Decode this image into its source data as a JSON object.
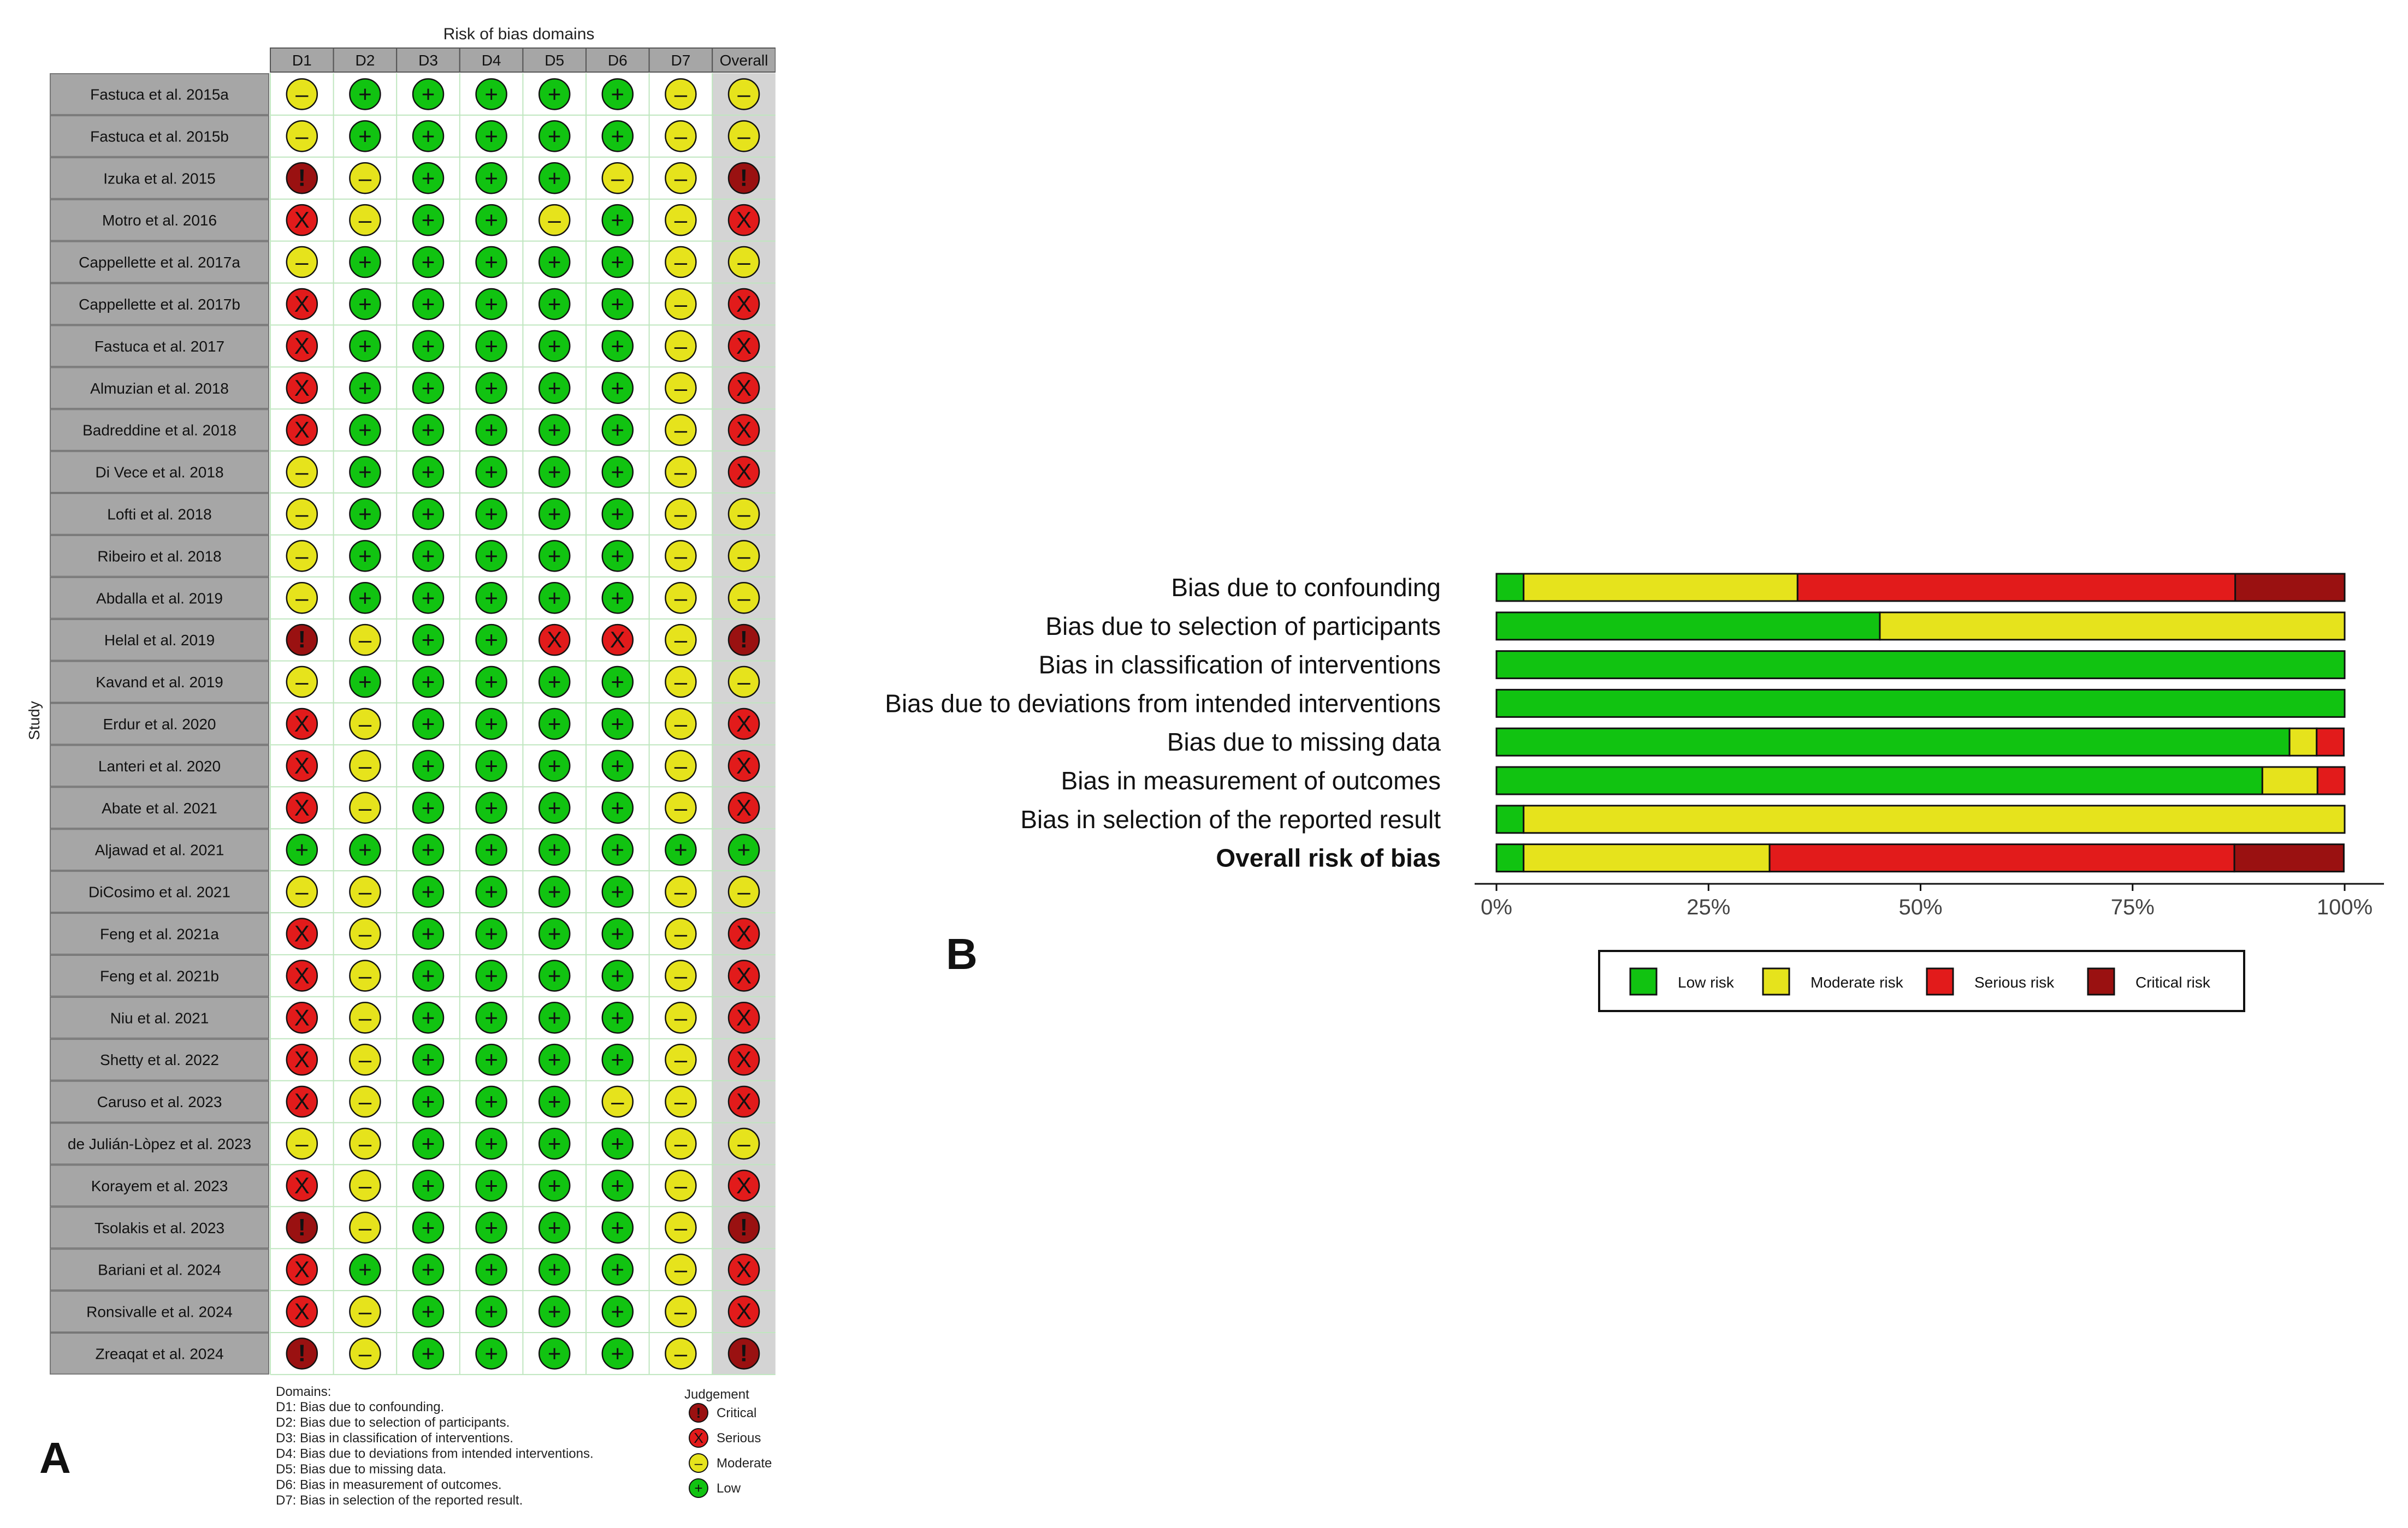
{
  "panel_a": {
    "letter": "A",
    "domains_title": "Risk of bias domains",
    "y_axis_label": "Study",
    "columns": [
      "D1",
      "D2",
      "D3",
      "D4",
      "D5",
      "D6",
      "D7",
      "Overall"
    ],
    "studies": [
      {
        "name": "Fastuca et al. 2015a",
        "j": [
          "M",
          "L",
          "L",
          "L",
          "L",
          "L",
          "M",
          "M"
        ]
      },
      {
        "name": "Fastuca et al. 2015b",
        "j": [
          "M",
          "L",
          "L",
          "L",
          "L",
          "L",
          "M",
          "M"
        ]
      },
      {
        "name": "Izuka et al. 2015",
        "j": [
          "C",
          "M",
          "L",
          "L",
          "L",
          "M",
          "M",
          "C"
        ]
      },
      {
        "name": "Motro et al. 2016",
        "j": [
          "S",
          "M",
          "L",
          "L",
          "M",
          "L",
          "M",
          "S"
        ]
      },
      {
        "name": "Cappellette et al. 2017a",
        "j": [
          "M",
          "L",
          "L",
          "L",
          "L",
          "L",
          "M",
          "M"
        ]
      },
      {
        "name": "Cappellette et al. 2017b",
        "j": [
          "S",
          "L",
          "L",
          "L",
          "L",
          "L",
          "M",
          "S"
        ]
      },
      {
        "name": "Fastuca et al. 2017",
        "j": [
          "S",
          "L",
          "L",
          "L",
          "L",
          "L",
          "M",
          "S"
        ]
      },
      {
        "name": "Almuzian et al. 2018",
        "j": [
          "S",
          "L",
          "L",
          "L",
          "L",
          "L",
          "M",
          "S"
        ]
      },
      {
        "name": "Badreddine et al. 2018",
        "j": [
          "S",
          "L",
          "L",
          "L",
          "L",
          "L",
          "M",
          "S"
        ]
      },
      {
        "name": "Di Vece et al. 2018",
        "j": [
          "M",
          "L",
          "L",
          "L",
          "L",
          "L",
          "M",
          "S"
        ]
      },
      {
        "name": "Lofti et al. 2018",
        "j": [
          "M",
          "L",
          "L",
          "L",
          "L",
          "L",
          "M",
          "M"
        ]
      },
      {
        "name": "Ribeiro et al. 2018",
        "j": [
          "M",
          "L",
          "L",
          "L",
          "L",
          "L",
          "M",
          "M"
        ]
      },
      {
        "name": "Abdalla et al. 2019",
        "j": [
          "M",
          "L",
          "L",
          "L",
          "L",
          "L",
          "M",
          "M"
        ]
      },
      {
        "name": "Helal et al. 2019",
        "j": [
          "C",
          "M",
          "L",
          "L",
          "S",
          "S",
          "M",
          "C"
        ]
      },
      {
        "name": "Kavand et al. 2019",
        "j": [
          "M",
          "L",
          "L",
          "L",
          "L",
          "L",
          "M",
          "M"
        ]
      },
      {
        "name": "Erdur et al. 2020",
        "j": [
          "S",
          "M",
          "L",
          "L",
          "L",
          "L",
          "M",
          "S"
        ]
      },
      {
        "name": "Lanteri et al. 2020",
        "j": [
          "S",
          "M",
          "L",
          "L",
          "L",
          "L",
          "M",
          "S"
        ]
      },
      {
        "name": "Abate et al. 2021",
        "j": [
          "S",
          "M",
          "L",
          "L",
          "L",
          "L",
          "M",
          "S"
        ]
      },
      {
        "name": "Aljawad et al. 2021",
        "j": [
          "L",
          "L",
          "L",
          "L",
          "L",
          "L",
          "L",
          "L"
        ]
      },
      {
        "name": "DiCosimo et al. 2021",
        "j": [
          "M",
          "M",
          "L",
          "L",
          "L",
          "L",
          "M",
          "M"
        ]
      },
      {
        "name": "Feng et al. 2021a",
        "j": [
          "S",
          "M",
          "L",
          "L",
          "L",
          "L",
          "M",
          "S"
        ]
      },
      {
        "name": "Feng et al. 2021b",
        "j": [
          "S",
          "M",
          "L",
          "L",
          "L",
          "L",
          "M",
          "S"
        ]
      },
      {
        "name": "Niu et al. 2021",
        "j": [
          "S",
          "M",
          "L",
          "L",
          "L",
          "L",
          "M",
          "S"
        ]
      },
      {
        "name": "Shetty et al. 2022",
        "j": [
          "S",
          "M",
          "L",
          "L",
          "L",
          "L",
          "M",
          "S"
        ]
      },
      {
        "name": "Caruso et al. 2023",
        "j": [
          "S",
          "M",
          "L",
          "L",
          "L",
          "M",
          "M",
          "S"
        ]
      },
      {
        "name": "de Julián-Lòpez et al. 2023",
        "j": [
          "M",
          "M",
          "L",
          "L",
          "L",
          "L",
          "M",
          "M"
        ]
      },
      {
        "name": "Korayem et al. 2023",
        "j": [
          "S",
          "M",
          "L",
          "L",
          "L",
          "L",
          "M",
          "S"
        ]
      },
      {
        "name": "Tsolakis et al. 2023",
        "j": [
          "C",
          "M",
          "L",
          "L",
          "L",
          "L",
          "M",
          "C"
        ]
      },
      {
        "name": "Bariani et al. 2024",
        "j": [
          "S",
          "L",
          "L",
          "L",
          "L",
          "L",
          "M",
          "S"
        ]
      },
      {
        "name": "Ronsivalle et al. 2024",
        "j": [
          "S",
          "M",
          "L",
          "L",
          "L",
          "L",
          "M",
          "S"
        ]
      },
      {
        "name": "Zreaqat et al. 2024",
        "j": [
          "C",
          "M",
          "L",
          "L",
          "L",
          "L",
          "M",
          "C"
        ]
      }
    ],
    "domains_legend": {
      "title": "Domains:",
      "items": [
        "D1: Bias due to confounding.",
        "D2: Bias due to selection of participants.",
        "D3: Bias in classification of interventions.",
        "D4: Bias due to deviations from intended interventions.",
        "D5: Bias due to missing data.",
        "D6: Bias in measurement of outcomes.",
        "D7: Bias in selection of the reported result."
      ]
    },
    "judgement_legend": {
      "title": "Judgement",
      "items": [
        {
          "code": "C",
          "label": "Critical"
        },
        {
          "code": "S",
          "label": "Serious"
        },
        {
          "code": "M",
          "label": "Moderate"
        },
        {
          "code": "L",
          "label": "Low"
        }
      ]
    },
    "symbols": {
      "L": "+",
      "M": "–",
      "S": "X",
      "C": "!"
    },
    "colors": {
      "L": "#11c311",
      "M": "#e6e31c",
      "S": "#e21b1b",
      "C": "#9a1111"
    }
  },
  "panel_b": {
    "letter": "B",
    "chart_data": {
      "type": "bar",
      "orientation": "horizontal-stacked",
      "categories": [
        "Bias due to confounding",
        "Bias due to selection of participants",
        "Bias in classification of interventions",
        "Bias due to deviations from intended interventions",
        "Bias due to missing data",
        "Bias in measurement of outcomes",
        "Bias in selection of the reported result",
        "Overall risk of bias"
      ],
      "bold_category": "Overall risk of bias",
      "series": [
        {
          "name": "Low risk",
          "color": "#11c311",
          "values": [
            3.2,
            45.2,
            100,
            100,
            93.5,
            90.3,
            3.2,
            3.2
          ]
        },
        {
          "name": "Moderate risk",
          "color": "#e6e31c",
          "values": [
            32.3,
            54.8,
            0,
            0,
            3.2,
            6.5,
            96.8,
            29.0
          ]
        },
        {
          "name": "Serious risk",
          "color": "#e21b1b",
          "values": [
            51.6,
            0,
            0,
            0,
            3.2,
            3.2,
            0,
            54.8
          ]
        },
        {
          "name": "Critical risk",
          "color": "#9a1111",
          "values": [
            12.9,
            0,
            0,
            0,
            0,
            0,
            0,
            12.9
          ]
        }
      ],
      "x_ticks": [
        "0%",
        "25%",
        "50%",
        "75%",
        "100%"
      ],
      "xlim": [
        0,
        100
      ],
      "legend_position": "bottom"
    }
  }
}
